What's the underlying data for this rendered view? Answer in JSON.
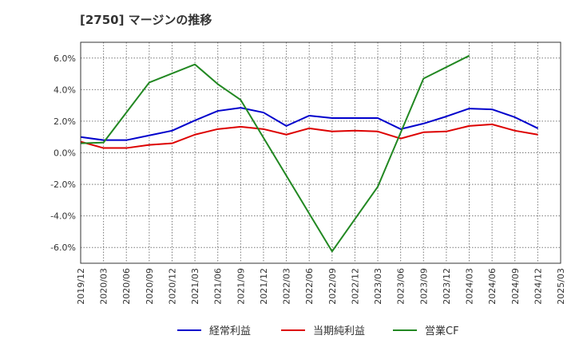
{
  "chart_data": {
    "type": "line",
    "title": "[2750]  マージンの推移",
    "xlabel": "",
    "ylabel": "",
    "x": [
      "2019/12",
      "2020/03",
      "2020/06",
      "2020/09",
      "2020/12",
      "2021/03",
      "2021/06",
      "2021/09",
      "2021/12",
      "2022/03",
      "2022/06",
      "2022/09",
      "2022/12",
      "2023/03",
      "2023/06",
      "2023/09",
      "2023/12",
      "2024/03",
      "2024/06",
      "2024/09",
      "2024/12",
      "2025/03"
    ],
    "ylim": [
      -7,
      7
    ],
    "yticks": [
      6,
      4,
      2,
      0,
      -2,
      -4,
      -6
    ],
    "ytick_labels": [
      "6.0%",
      "4.0%",
      "2.0%",
      "0.0%",
      "-2.0%",
      "-4.0%",
      "-6.0%"
    ],
    "grid": true,
    "legend_position": "bottom",
    "series": [
      {
        "name": "経常利益",
        "color": "#0000cc",
        "values": [
          1.0,
          0.8,
          0.8,
          1.1,
          1.4,
          2.05,
          2.65,
          2.85,
          2.55,
          1.7,
          2.35,
          2.2,
          2.2,
          2.2,
          1.5,
          1.85,
          2.3,
          2.8,
          2.75,
          2.25,
          1.55,
          null
        ]
      },
      {
        "name": "当期純利益",
        "color": "#dd0000",
        "values": [
          0.7,
          0.3,
          0.3,
          0.5,
          0.6,
          1.15,
          1.5,
          1.65,
          1.5,
          1.15,
          1.55,
          1.35,
          1.4,
          1.35,
          0.9,
          1.3,
          1.35,
          1.7,
          1.8,
          1.4,
          1.15,
          null
        ]
      },
      {
        "name": "営業CF",
        "color": "#228822",
        "values": [
          0.6,
          0.65,
          null,
          4.45,
          null,
          5.6,
          4.35,
          3.35,
          null,
          null,
          null,
          -6.25,
          null,
          -2.15,
          null,
          4.7,
          null,
          6.15,
          null,
          null,
          null,
          null
        ]
      }
    ]
  }
}
